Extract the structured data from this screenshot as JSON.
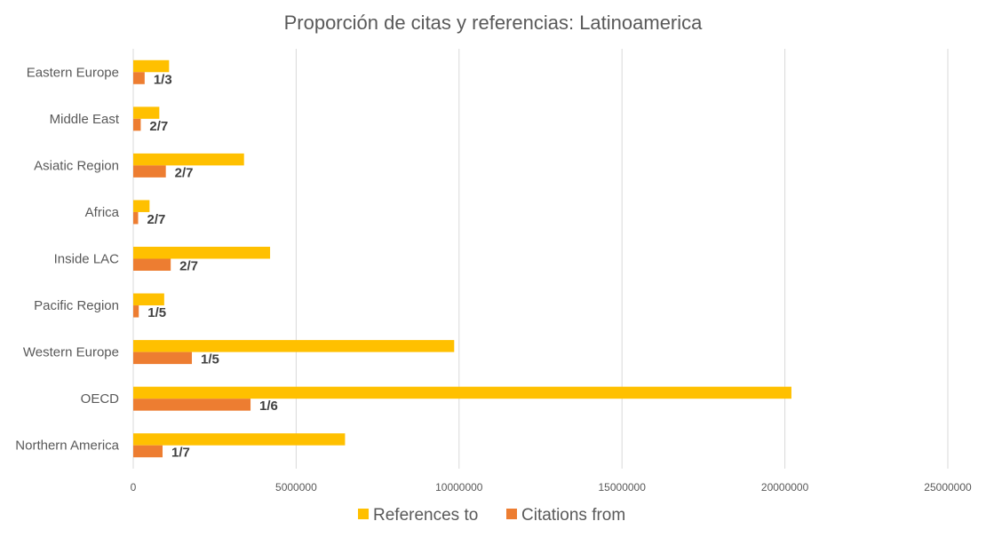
{
  "chart_data": {
    "type": "bar",
    "orientation": "horizontal",
    "title": "Proporción de citas y referencias: Latinoamerica",
    "categories": [
      "Eastern Europe",
      "Middle East",
      "Asiatic Region",
      "Africa",
      "Inside LAC",
      "Pacific Region",
      "Western Europe",
      "OECD",
      "Northern America"
    ],
    "series": [
      {
        "name": "References to",
        "color": "#FFC000",
        "values": [
          1100000,
          800000,
          3400000,
          500000,
          4200000,
          950000,
          9850000,
          20200000,
          6500000
        ]
      },
      {
        "name": "Citations from",
        "color": "#ED7D31",
        "values": [
          350000,
          230000,
          1000000,
          150000,
          1150000,
          170000,
          1800000,
          3600000,
          900000
        ]
      }
    ],
    "data_labels": [
      "1/3",
      "2/7",
      "2/7",
      "2/7",
      "2/7",
      "1/5",
      "1/5",
      "1/6",
      "1/7"
    ],
    "xlim": [
      0,
      25000000
    ],
    "x_ticks": [
      "0",
      "5000000",
      "10000000",
      "15000000",
      "20000000",
      "25000000"
    ],
    "grid": true,
    "legend_position": "bottom"
  }
}
